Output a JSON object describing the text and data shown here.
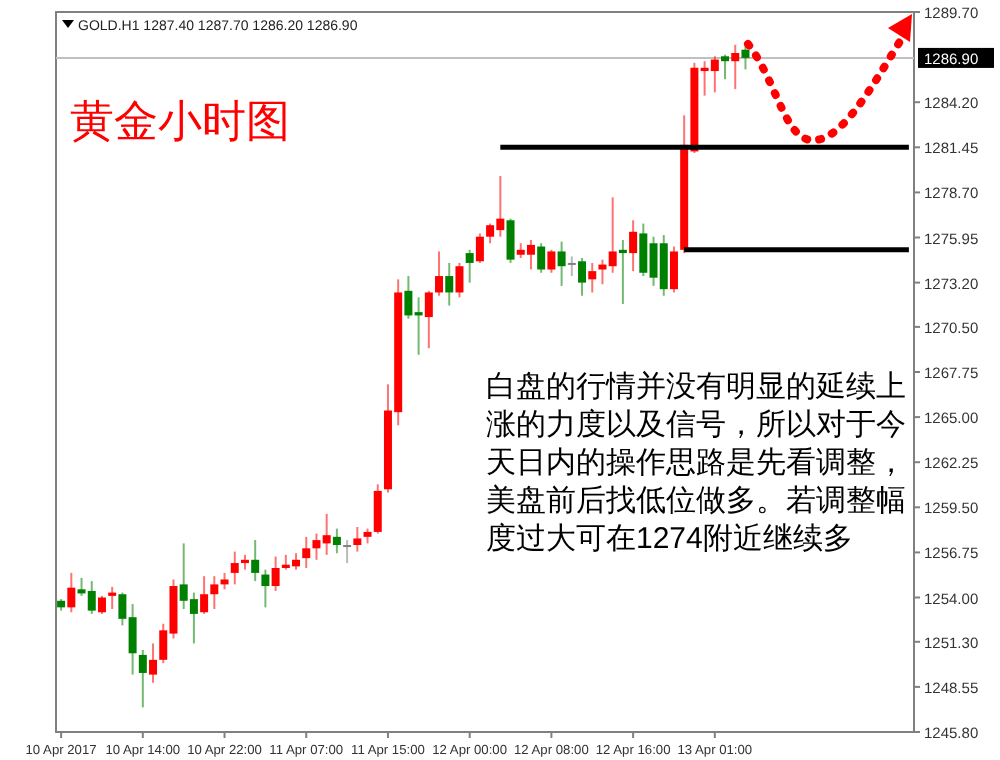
{
  "chart_data": {
    "type": "candlestick",
    "title": "黄金小时图",
    "annotations": [
      "GOLD.H1  1287.40 1287.70 1286.20 1286.90",
      "白盘的行情并没有明显的延续上涨的力度以及信号，所以对于今天日内的操作思路是先看调整，美盘前后找低位做多。若调整幅度过大可在1274附近继续多"
    ],
    "categories": [
      "10 Apr 2017",
      null,
      null,
      null,
      null,
      null,
      null,
      null,
      "10 Apr 14:00",
      null,
      null,
      null,
      null,
      null,
      null,
      null,
      "10 Apr 22:00",
      null,
      null,
      null,
      null,
      null,
      null,
      null,
      "11 Apr 07:00",
      null,
      null,
      null,
      null,
      null,
      null,
      null,
      "11 Apr 15:00",
      null,
      null,
      null,
      null,
      null,
      null,
      null,
      "12 Apr 00:00",
      null,
      null,
      null,
      null,
      null,
      null,
      null,
      "12 Apr 08:00",
      null,
      null,
      null,
      null,
      null,
      null,
      null,
      "12 Apr 16:00",
      null,
      null,
      null,
      null,
      null,
      null,
      null,
      "13 Apr 01:00",
      null,
      null,
      null,
      null,
      null,
      null,
      null,
      null,
      null,
      null,
      null,
      null,
      null,
      null,
      null,
      null,
      null,
      null,
      null
    ],
    "ohlc": [
      [
        1253.8,
        1253.9,
        1253.2,
        1253.4
      ],
      [
        1253.4,
        1255.5,
        1253.1,
        1254.6
      ],
      [
        1254.5,
        1255.2,
        1254.1,
        1254.25
      ],
      [
        1254.4,
        1255.0,
        1253.0,
        1253.2
      ],
      [
        1253.1,
        1254.1,
        1253.0,
        1254.0
      ],
      [
        1254.1,
        1254.65,
        1253.3,
        1254.3
      ],
      [
        1254.2,
        1254.3,
        1252.3,
        1252.7
      ],
      [
        1252.8,
        1253.6,
        1249.3,
        1250.6
      ],
      [
        1250.5,
        1250.8,
        1247.3,
        1249.4
      ],
      [
        1249.3,
        1251.2,
        1248.8,
        1250.2
      ],
      [
        1250.2,
        1252.4,
        1250.0,
        1252.0
      ],
      [
        1251.8,
        1255.1,
        1251.5,
        1254.7
      ],
      [
        1254.8,
        1257.3,
        1253.3,
        1253.8
      ],
      [
        1253.9,
        1254.3,
        1251.2,
        1253.0
      ],
      [
        1253.1,
        1255.3,
        1253.0,
        1254.2
      ],
      [
        1254.2,
        1255.3,
        1253.3,
        1254.8
      ],
      [
        1254.8,
        1255.5,
        1254.5,
        1255.1
      ],
      [
        1255.5,
        1256.8,
        1254.8,
        1256.1
      ],
      [
        1256.1,
        1256.6,
        1255.7,
        1256.3
      ],
      [
        1256.3,
        1257.5,
        1255.0,
        1255.5
      ],
      [
        1255.4,
        1255.7,
        1253.4,
        1254.7
      ],
      [
        1254.7,
        1256.5,
        1254.4,
        1255.8
      ],
      [
        1255.8,
        1256.6,
        1255.7,
        1256.0
      ],
      [
        1255.9,
        1256.7,
        1255.7,
        1256.3
      ],
      [
        1256.4,
        1257.7,
        1255.8,
        1257.0
      ],
      [
        1257.0,
        1257.9,
        1256.3,
        1257.5
      ],
      [
        1257.3,
        1259.1,
        1256.6,
        1257.8
      ],
      [
        1257.7,
        1258.2,
        1256.7,
        1257.2
      ],
      [
        1257.2,
        1257.5,
        1256.1,
        1257.2
      ],
      [
        1257.2,
        1258.3,
        1256.8,
        1257.6
      ],
      [
        1257.7,
        1258.2,
        1257.3,
        1258.0
      ],
      [
        1258.0,
        1260.9,
        1257.9,
        1260.5
      ],
      [
        1260.6,
        1267.0,
        1260.4,
        1265.4
      ],
      [
        1265.3,
        1273.4,
        1264.5,
        1272.6
      ],
      [
        1272.7,
        1273.6,
        1271.0,
        1271.2
      ],
      [
        1271.4,
        1272.3,
        1268.8,
        1271.2
      ],
      [
        1271.1,
        1272.7,
        1269.2,
        1272.6
      ],
      [
        1272.6,
        1275.1,
        1272.4,
        1273.6
      ],
      [
        1273.6,
        1274.4,
        1271.8,
        1272.6
      ],
      [
        1272.6,
        1274.4,
        1272.3,
        1274.2
      ],
      [
        1275.0,
        1275.2,
        1273.2,
        1274.4
      ],
      [
        1274.5,
        1276.2,
        1274.4,
        1276.0
      ],
      [
        1276.0,
        1276.8,
        1275.6,
        1276.7
      ],
      [
        1276.4,
        1279.7,
        1276.0,
        1277.1
      ],
      [
        1277.0,
        1277.1,
        1274.4,
        1274.6
      ],
      [
        1274.9,
        1275.6,
        1274.7,
        1275.2
      ],
      [
        1274.9,
        1275.8,
        1274.0,
        1275.5
      ],
      [
        1275.4,
        1275.6,
        1273.8,
        1274.0
      ],
      [
        1274.0,
        1275.2,
        1273.8,
        1275.1
      ],
      [
        1275.1,
        1275.7,
        1273.0,
        1274.2
      ],
      [
        1274.4,
        1274.8,
        1273.6,
        1274.4
      ],
      [
        1274.5,
        1274.7,
        1272.4,
        1273.2
      ],
      [
        1273.4,
        1274.4,
        1272.6,
        1273.9
      ],
      [
        1274.0,
        1274.6,
        1273.1,
        1274.3
      ],
      [
        1274.2,
        1278.4,
        1273.8,
        1275.1
      ],
      [
        1275.2,
        1275.8,
        1271.9,
        1275.0
      ],
      [
        1275.0,
        1277.0,
        1273.9,
        1276.3
      ],
      [
        1276.2,
        1276.8,
        1273.6,
        1273.8
      ],
      [
        1275.6,
        1276.0,
        1273.0,
        1273.5
      ],
      [
        1275.6,
        1276.1,
        1272.4,
        1272.8
      ],
      [
        1272.8,
        1275.4,
        1272.6,
        1275.1
      ],
      [
        1275.2,
        1283.4,
        1275.0,
        1281.6
      ],
      [
        1281.2,
        1286.6,
        1281.1,
        1286.3
      ],
      [
        1286.1,
        1286.7,
        1284.6,
        1286.3
      ],
      [
        1286.1,
        1287.0,
        1284.8,
        1286.8
      ],
      [
        1287.0,
        1287.1,
        1285.6,
        1286.7
      ],
      [
        1286.7,
        1287.7,
        1285.0,
        1287.2
      ],
      [
        1287.4,
        1287.7,
        1286.2,
        1286.9
      ],
      null,
      null,
      null,
      null,
      null,
      null,
      null,
      null,
      null,
      null,
      null,
      null,
      null,
      null,
      null,
      null
    ],
    "colors": [
      "#008000",
      "#ff0000",
      "#008000",
      "#008000",
      "#ff0000",
      "#ff0000",
      "#008000",
      "#008000",
      "#008000",
      "#ff0000",
      "#ff0000",
      "#ff0000",
      "#008000",
      "#008000",
      "#ff0000",
      "#ff0000",
      "#ff0000",
      "#ff0000",
      "#ff0000",
      "#008000",
      "#008000",
      "#ff0000",
      "#ff0000",
      "#ff0000",
      "#ff0000",
      "#ff0000",
      "#ff0000",
      "#008000",
      "#808080",
      "#ff0000",
      "#ff0000",
      "#ff0000",
      "#ff0000",
      "#ff0000",
      "#008000",
      "#008000",
      "#ff0000",
      "#ff0000",
      "#008000",
      "#ff0000",
      "#008000",
      "#ff0000",
      "#ff0000",
      "#ff0000",
      "#008000",
      "#ff0000",
      "#ff0000",
      "#008000",
      "#ff0000",
      "#008000",
      "#808080",
      "#008000",
      "#ff0000",
      "#ff0000",
      "#ff0000",
      "#008000",
      "#ff0000",
      "#008000",
      "#008000",
      "#008000",
      "#ff0000",
      "#ff0000",
      "#ff0000",
      "#ff0000",
      "#ff0000",
      "#008000",
      "#ff0000",
      "#008000",
      null,
      null,
      null,
      null,
      null,
      null,
      null,
      null,
      null,
      null,
      null,
      null,
      null,
      null,
      null,
      null
    ],
    "series": [
      {
        "type": "line",
        "color": "#000000",
        "values": [
          null,
          null,
          null,
          null,
          null,
          null,
          null,
          null,
          null,
          null,
          null,
          null,
          null,
          null,
          null,
          null,
          null,
          null,
          null,
          null,
          null,
          null,
          null,
          null,
          null,
          null,
          null,
          null,
          null,
          null,
          null,
          null,
          null,
          null,
          null,
          null,
          null,
          null,
          null,
          null,
          null,
          null,
          null,
          1281.45,
          1281.45,
          1281.45,
          1281.45,
          1281.45,
          1281.45,
          1281.45,
          1281.45,
          1281.45,
          1281.45,
          1281.45,
          1281.45,
          1281.45,
          1281.45,
          1281.45,
          1281.45,
          1281.45,
          1281.45,
          1281.45,
          1281.45,
          1281.45,
          1281.45,
          1281.45,
          1281.45,
          1281.45,
          1281.45,
          1281.45,
          1281.45,
          1281.45,
          1281.45,
          1281.45,
          1281.45,
          1281.45,
          1281.45,
          1281.45,
          1281.45,
          1281.45,
          1281.45,
          1281.45,
          1281.45,
          1281.45
        ]
      },
      {
        "type": "line",
        "color": "#000000",
        "values": [
          null,
          null,
          null,
          null,
          null,
          null,
          null,
          null,
          null,
          null,
          null,
          null,
          null,
          null,
          null,
          null,
          null,
          null,
          null,
          null,
          null,
          null,
          null,
          null,
          null,
          null,
          null,
          null,
          null,
          null,
          null,
          null,
          null,
          null,
          null,
          null,
          null,
          null,
          null,
          null,
          null,
          null,
          null,
          null,
          null,
          null,
          null,
          null,
          null,
          null,
          null,
          null,
          null,
          null,
          null,
          null,
          null,
          null,
          null,
          null,
          null,
          1275.2,
          1275.2,
          1275.2,
          1275.2,
          1275.2,
          1275.2,
          1275.2,
          1275.2,
          1275.2,
          1275.2,
          1275.2,
          1275.2,
          1275.2,
          1275.2,
          1275.2,
          1275.2,
          1275.2,
          1275.2,
          1275.2,
          1275.2,
          1275.2,
          1275.2,
          1275.2
        ]
      }
    ],
    "ylim": [
      1245.8,
      1289.7
    ],
    "yticks": [
      {
        "value": 1289.7,
        "label": "1289.70"
      },
      {
        "value": 1284.2,
        "label": "1284.20"
      },
      {
        "value": 1281.45,
        "label": "1281.45"
      },
      {
        "value": 1278.7,
        "label": "1278.70"
      },
      {
        "value": 1275.95,
        "label": "1275.95"
      },
      {
        "value": 1273.2,
        "label": "1273.20"
      },
      {
        "value": 1270.5,
        "label": "1270.50"
      },
      {
        "value": 1267.75,
        "label": "1267.75"
      },
      {
        "value": 1265,
        "label": "1265.00"
      },
      {
        "value": 1262.25,
        "label": "1262.25"
      },
      {
        "value": 1259.5,
        "label": "1259.50"
      },
      {
        "value": 1256.75,
        "label": "1256.75"
      },
      {
        "value": 1254,
        "label": "1254.00"
      },
      {
        "value": 1251.3,
        "label": "1251.30"
      },
      {
        "value": 1248.55,
        "label": "1248.55"
      },
      {
        "value": 1245.8,
        "label": "1245.80"
      }
    ],
    "ref_lines": [
      {
        "axis": "y",
        "value": 1286.9,
        "label": "1286.90",
        "color": "#c0c0c0"
      }
    ]
  }
}
